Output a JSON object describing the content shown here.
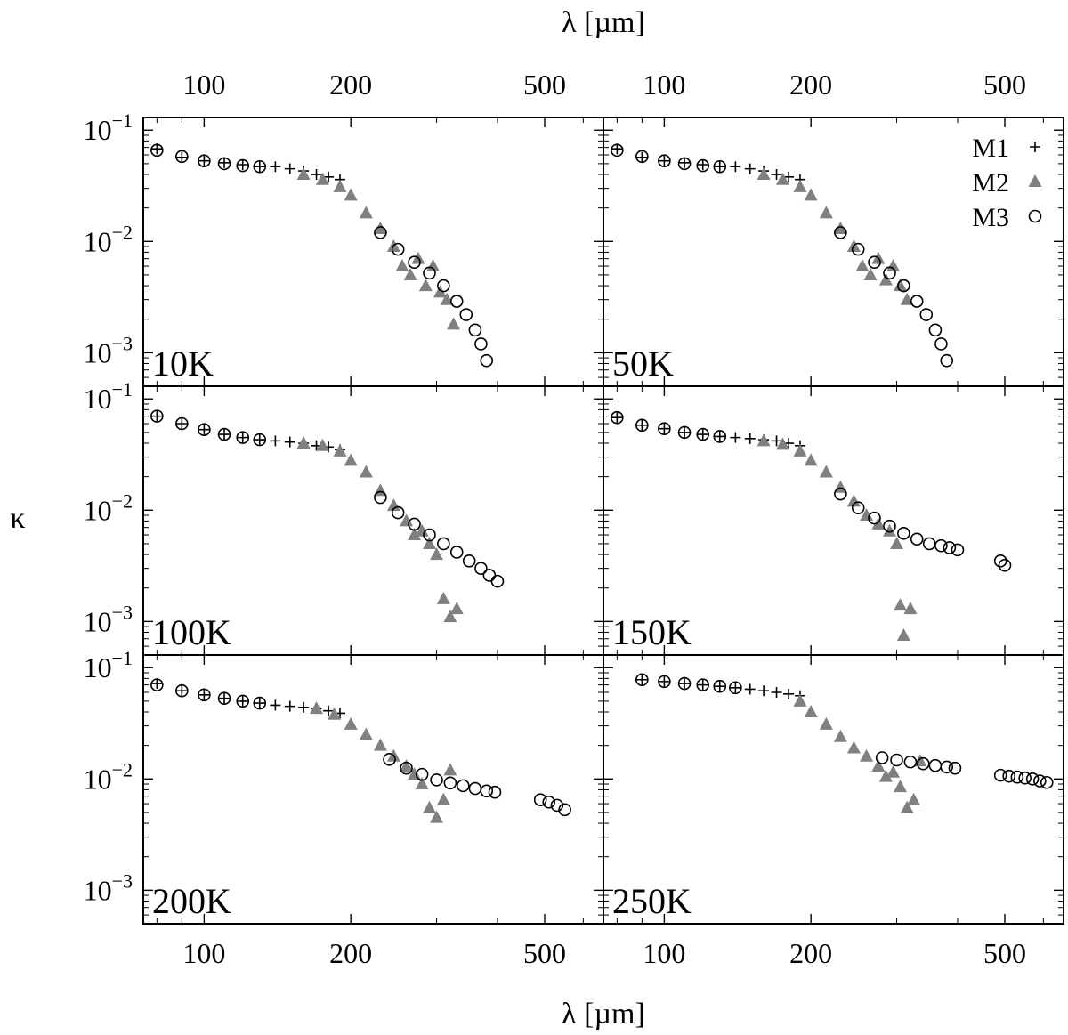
{
  "figure": {
    "x_axis_label": "λ [µm]",
    "y_axis_label": "κ",
    "legend": [
      "M1",
      "M2",
      "M3"
    ]
  },
  "colors": {
    "M1": "#000000",
    "M2": "#808080",
    "M3": "#000000"
  },
  "chart_data": {
    "type": "scatter",
    "layout": "3x2 grid of panels sharing axes",
    "xlabel": "λ [µm]",
    "ylabel": "κ",
    "x_scale": "log",
    "y_scale": "log",
    "xlim": [
      75,
      660
    ],
    "ylim": [
      0.0005,
      0.13
    ],
    "x_ticks": [
      100,
      200,
      500
    ],
    "x_tick_labels": [
      "100",
      "200",
      "500"
    ],
    "y_ticks": [
      0.1,
      0.01,
      0.001
    ],
    "legend_position": "top-right of 50K panel",
    "markers": {
      "M1": "plus",
      "M2": "filled triangle",
      "M3": "open circle"
    },
    "panels": [
      {
        "label": "10K",
        "series": [
          {
            "name": "M1",
            "x": [
              80,
              90,
              100,
              110,
              120,
              130,
              140,
              150,
              160,
              170,
              180,
              190
            ],
            "y": [
              0.068,
              0.057,
              0.053,
              0.051,
              0.049,
              0.047,
              0.047,
              0.045,
              0.043,
              0.04,
              0.038,
              0.036
            ]
          },
          {
            "name": "M2",
            "x": [
              160,
              175,
              190,
              200,
              215,
              230,
              245,
              255,
              265,
              275,
              285,
              295,
              305,
              315,
              325
            ],
            "y": [
              0.04,
              0.036,
              0.031,
              0.026,
              0.018,
              0.013,
              0.009,
              0.006,
              0.005,
              0.007,
              0.004,
              0.006,
              0.0035,
              0.003,
              0.0018
            ]
          },
          {
            "name": "M3",
            "x": [
              80,
              90,
              100,
              110,
              120,
              130,
              230,
              250,
              270,
              290,
              310,
              330,
              345,
              360,
              370,
              380
            ],
            "y": [
              0.066,
              0.058,
              0.053,
              0.05,
              0.048,
              0.047,
              0.012,
              0.0085,
              0.0065,
              0.0052,
              0.004,
              0.0029,
              0.0022,
              0.0016,
              0.0012,
              0.00085
            ]
          }
        ]
      },
      {
        "label": "50K",
        "series": [
          {
            "name": "M1",
            "x": [
              80,
              90,
              100,
              110,
              120,
              130,
              140,
              150,
              160,
              170,
              180,
              190
            ],
            "y": [
              0.068,
              0.057,
              0.053,
              0.051,
              0.049,
              0.047,
              0.047,
              0.045,
              0.043,
              0.04,
              0.038,
              0.036
            ]
          },
          {
            "name": "M2",
            "x": [
              160,
              175,
              190,
              200,
              215,
              230,
              245,
              255,
              265,
              275,
              285,
              295,
              305,
              315
            ],
            "y": [
              0.04,
              0.036,
              0.031,
              0.026,
              0.018,
              0.013,
              0.009,
              0.006,
              0.005,
              0.007,
              0.0045,
              0.006,
              0.004,
              0.003
            ]
          },
          {
            "name": "M3",
            "x": [
              80,
              90,
              100,
              110,
              120,
              130,
              230,
              250,
              270,
              290,
              310,
              330,
              345,
              360,
              370,
              380
            ],
            "y": [
              0.066,
              0.058,
              0.053,
              0.05,
              0.048,
              0.047,
              0.012,
              0.0085,
              0.0065,
              0.0052,
              0.004,
              0.0029,
              0.0022,
              0.0016,
              0.0012,
              0.00085
            ]
          }
        ]
      },
      {
        "label": "100K",
        "series": [
          {
            "name": "M1",
            "x": [
              80,
              90,
              100,
              110,
              120,
              130,
              140,
              150,
              160,
              170,
              180,
              190
            ],
            "y": [
              0.07,
              0.06,
              0.053,
              0.048,
              0.045,
              0.043,
              0.042,
              0.041,
              0.04,
              0.038,
              0.037,
              0.035
            ]
          },
          {
            "name": "M2",
            "x": [
              160,
              175,
              190,
              200,
              215,
              230,
              245,
              260,
              270,
              280,
              290,
              300,
              310,
              320,
              330
            ],
            "y": [
              0.04,
              0.038,
              0.034,
              0.028,
              0.022,
              0.015,
              0.011,
              0.008,
              0.006,
              0.0065,
              0.005,
              0.004,
              0.0016,
              0.0011,
              0.0013
            ]
          },
          {
            "name": "M3",
            "x": [
              80,
              90,
              100,
              110,
              120,
              130,
              230,
              250,
              270,
              290,
              310,
              330,
              350,
              370,
              385,
              400
            ],
            "y": [
              0.07,
              0.06,
              0.053,
              0.048,
              0.045,
              0.043,
              0.013,
              0.0095,
              0.0075,
              0.006,
              0.005,
              0.0042,
              0.0035,
              0.003,
              0.0026,
              0.0023
            ]
          }
        ]
      },
      {
        "label": "150K",
        "series": [
          {
            "name": "M1",
            "x": [
              80,
              90,
              100,
              110,
              120,
              130,
              140,
              150,
              160,
              170,
              180,
              190
            ],
            "y": [
              0.068,
              0.058,
              0.054,
              0.05,
              0.048,
              0.046,
              0.045,
              0.044,
              0.043,
              0.042,
              0.04,
              0.038
            ]
          },
          {
            "name": "M2",
            "x": [
              160,
              175,
              190,
              200,
              215,
              230,
              245,
              260,
              275,
              290,
              300,
              305,
              310,
              320
            ],
            "y": [
              0.042,
              0.039,
              0.034,
              0.028,
              0.022,
              0.016,
              0.012,
              0.009,
              0.0075,
              0.0065,
              0.005,
              0.0014,
              0.00075,
              0.0013
            ]
          },
          {
            "name": "M3",
            "x": [
              80,
              90,
              100,
              110,
              120,
              130,
              230,
              250,
              270,
              290,
              310,
              330,
              350,
              370,
              385,
              400,
              490,
              500
            ],
            "y": [
              0.068,
              0.058,
              0.054,
              0.05,
              0.048,
              0.046,
              0.014,
              0.0105,
              0.0085,
              0.0072,
              0.0062,
              0.0055,
              0.005,
              0.0048,
              0.0046,
              0.0044,
              0.0035,
              0.0032
            ]
          }
        ]
      },
      {
        "label": "200K",
        "series": [
          {
            "name": "M1",
            "x": [
              80,
              90,
              100,
              110,
              120,
              130,
              140,
              150,
              160,
              170,
              180,
              190
            ],
            "y": [
              0.072,
              0.062,
              0.057,
              0.053,
              0.05,
              0.048,
              0.046,
              0.045,
              0.044,
              0.043,
              0.041,
              0.039
            ]
          },
          {
            "name": "M2",
            "x": [
              170,
              185,
              200,
              215,
              230,
              245,
              260,
              270,
              280,
              290,
              300,
              310,
              320
            ],
            "y": [
              0.043,
              0.038,
              0.031,
              0.025,
              0.02,
              0.016,
              0.013,
              0.011,
              0.009,
              0.0055,
              0.0045,
              0.0065,
              0.012
            ]
          },
          {
            "name": "M3",
            "x": [
              80,
              90,
              100,
              110,
              120,
              130,
              240,
              260,
              280,
              300,
              320,
              340,
              360,
              380,
              395,
              490,
              510,
              530,
              550
            ],
            "y": [
              0.07,
              0.062,
              0.057,
              0.053,
              0.05,
              0.048,
              0.015,
              0.0125,
              0.011,
              0.0098,
              0.0092,
              0.0087,
              0.0082,
              0.0078,
              0.0076,
              0.0065,
              0.0062,
              0.0058,
              0.0053
            ]
          }
        ]
      },
      {
        "label": "250K",
        "series": [
          {
            "name": "M1",
            "x": [
              90,
              100,
              110,
              120,
              130,
              140,
              150,
              160,
              170,
              180,
              190
            ],
            "y": [
              0.078,
              0.075,
              0.072,
              0.07,
              0.068,
              0.066,
              0.064,
              0.062,
              0.06,
              0.058,
              0.056
            ]
          },
          {
            "name": "M2",
            "x": [
              190,
              200,
              215,
              230,
              245,
              260,
              275,
              285,
              295,
              305,
              315,
              325,
              335
            ],
            "y": [
              0.05,
              0.04,
              0.031,
              0.024,
              0.019,
              0.016,
              0.013,
              0.0105,
              0.0115,
              0.0085,
              0.0055,
              0.0065,
              0.0145
            ]
          },
          {
            "name": "M3",
            "x": [
              90,
              100,
              110,
              120,
              130,
              140,
              280,
              300,
              320,
              340,
              360,
              380,
              395,
              490,
              510,
              530,
              550,
              570,
              590,
              610
            ],
            "y": [
              0.078,
              0.075,
              0.072,
              0.07,
              0.068,
              0.066,
              0.0155,
              0.0148,
              0.0142,
              0.0137,
              0.0132,
              0.0128,
              0.0125,
              0.0108,
              0.0106,
              0.0104,
              0.0102,
              0.01,
              0.0096,
              0.0093
            ]
          }
        ]
      }
    ]
  }
}
